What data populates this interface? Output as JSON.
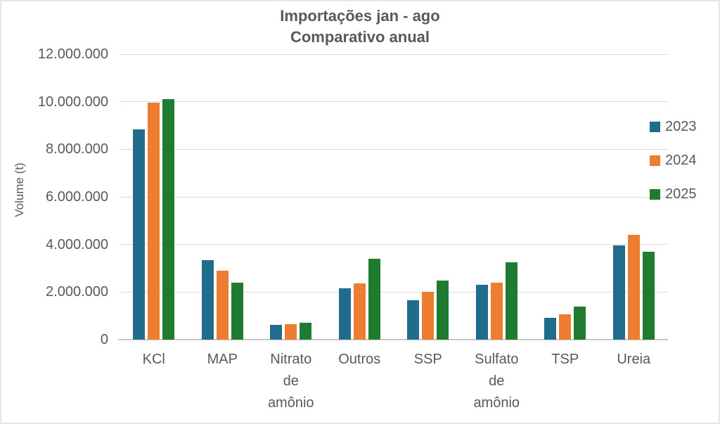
{
  "window": {
    "background": "#FFFFFF",
    "border_color": "#E7E6E6",
    "text_color": "#595959"
  },
  "chart_data": {
    "type": "bar",
    "title": "Importações jan - ago",
    "subtitle": "Comparativo anual",
    "ylabel": "Volume (t)",
    "xlabel": "",
    "categories": [
      "KCl",
      "MAP",
      "Nitrato de amônio",
      "Outros",
      "SSP",
      "Sulfato de amônio",
      "TSP",
      "Ureia"
    ],
    "series": [
      {
        "name": "2023",
        "color": "#1F6C8C",
        "values": [
          8850000,
          3350000,
          620000,
          2150000,
          1650000,
          2300000,
          920000,
          3950000
        ]
      },
      {
        "name": "2024",
        "color": "#ED7D31",
        "values": [
          9950000,
          2900000,
          650000,
          2350000,
          2000000,
          2400000,
          1050000,
          4400000
        ]
      },
      {
        "name": "2025",
        "color": "#1E7B2F",
        "values": [
          10100000,
          2400000,
          700000,
          3400000,
          2480000,
          3250000,
          1400000,
          3700000
        ]
      }
    ],
    "ylim": [
      0,
      12000000
    ],
    "ytick_interval": 2000000,
    "ytick_labels": [
      "0",
      "2.000.000",
      "4.000.000",
      "6.000.000",
      "8.000.000",
      "10.000.000",
      "12.000.000"
    ],
    "grid": true,
    "gridline_color": "#D9D9D9",
    "axis_line_color": "#C9C9C9",
    "legend_position": "right"
  }
}
